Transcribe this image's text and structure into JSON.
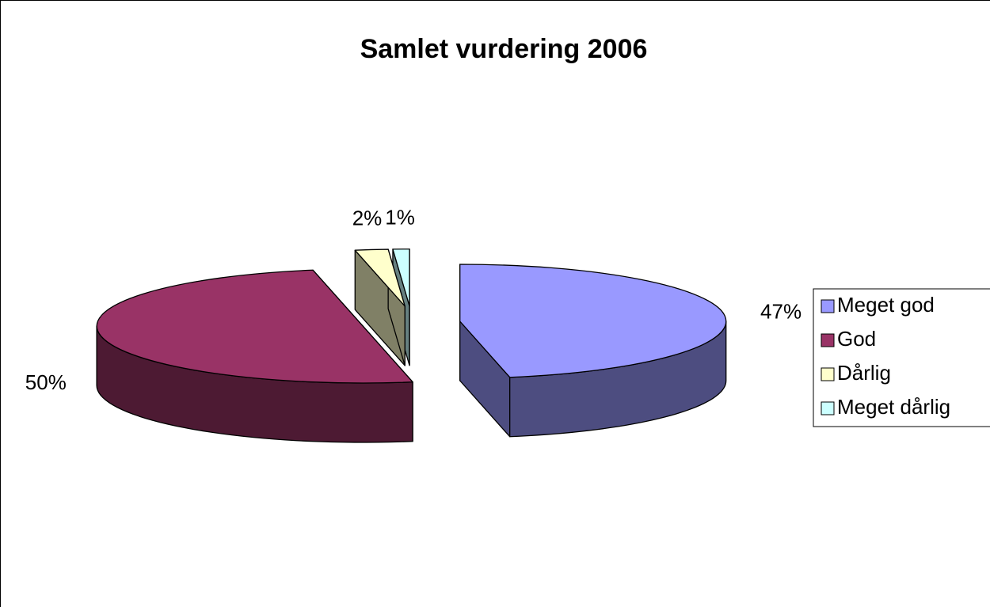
{
  "chart_data": {
    "type": "pie",
    "title": "Samlet vurdering 2006",
    "categories": [
      "Meget god",
      "God",
      "Dårlig",
      "Meget dårlig"
    ],
    "values": [
      47,
      50,
      2,
      1
    ],
    "value_labels": [
      "47%",
      "50%",
      "2%",
      "1%"
    ],
    "colors": [
      "#9999ff",
      "#993366",
      "#ffffcc",
      "#ccffff"
    ],
    "legend": "right"
  }
}
